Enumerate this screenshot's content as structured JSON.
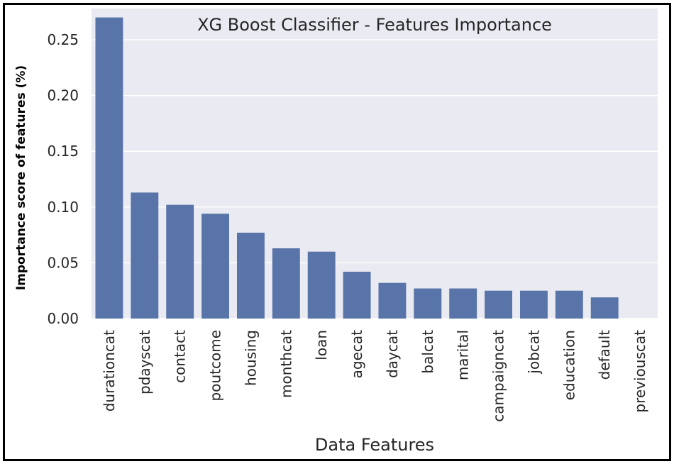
{
  "chart_data": {
    "type": "bar",
    "title": "XG Boost Classifier - Features Importance",
    "xlabel": "Data Features",
    "ylabel": "Importance score of features (%)",
    "categories": [
      "durationcat",
      "pdayscat",
      "contact",
      "poutcome",
      "housing",
      "monthcat",
      "loan",
      "agecat",
      "daycat",
      "balcat",
      "marital",
      "campaigncat",
      "jobcat",
      "education",
      "default",
      "previouscat"
    ],
    "values": [
      0.27,
      0.113,
      0.102,
      0.094,
      0.077,
      0.063,
      0.06,
      0.042,
      0.032,
      0.027,
      0.027,
      0.025,
      0.025,
      0.025,
      0.019,
      0.0
    ],
    "yticks": [
      "0.00",
      "0.05",
      "0.10",
      "0.15",
      "0.20",
      "0.25"
    ],
    "ylim": [
      0,
      0.278
    ],
    "grid": true,
    "colors": {
      "bar": "#5874a8",
      "plot_background": "#eaeaf2",
      "grid": "#ffffff"
    }
  }
}
